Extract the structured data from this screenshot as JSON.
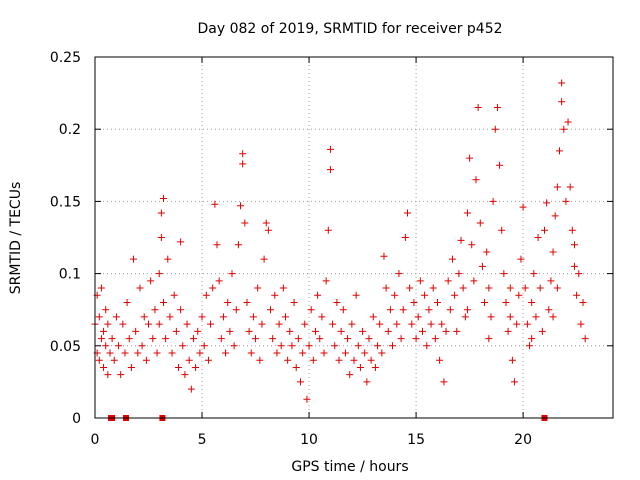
{
  "chart_data": {
    "type": "scatter",
    "title": "Day 082 of 2019, SRMTID for receiver p452",
    "xlabel": "GPS time / hours",
    "ylabel": "SRMTID / TECUs",
    "xlim": [
      0,
      24.2
    ],
    "ylim": [
      0,
      0.25
    ],
    "x_ticks": [
      0,
      5,
      10,
      15,
      20
    ],
    "x_tick_labels": [
      "0",
      "5",
      "10",
      "15",
      "20"
    ],
    "y_ticks": [
      0,
      0.05,
      0.1,
      0.15,
      0.2,
      0.25
    ],
    "y_tick_labels": [
      "0",
      "0.05",
      "0.1",
      "0.15",
      "0.2",
      "0.25"
    ],
    "grid": true,
    "marker": "plus",
    "color": "#e00000",
    "zero_markers_x": [
      0.75,
      0.8,
      1.45,
      3.15,
      21.0
    ],
    "series": [
      {
        "name": "SRMTID",
        "points": [
          [
            0.0,
            0.065
          ],
          [
            0.1,
            0.045
          ],
          [
            0.1,
            0.085
          ],
          [
            0.2,
            0.04
          ],
          [
            0.2,
            0.07
          ],
          [
            0.3,
            0.055
          ],
          [
            0.3,
            0.09
          ],
          [
            0.4,
            0.035
          ],
          [
            0.4,
            0.06
          ],
          [
            0.5,
            0.05
          ],
          [
            0.5,
            0.075
          ],
          [
            0.6,
            0.03
          ],
          [
            0.6,
            0.065
          ],
          [
            0.7,
            0.045
          ],
          [
            0.8,
            0.055
          ],
          [
            0.9,
            0.04
          ],
          [
            1.0,
            0.07
          ],
          [
            1.1,
            0.05
          ],
          [
            1.2,
            0.03
          ],
          [
            1.3,
            0.065
          ],
          [
            1.4,
            0.045
          ],
          [
            1.5,
            0.08
          ],
          [
            1.6,
            0.055
          ],
          [
            1.7,
            0.035
          ],
          [
            1.8,
            0.11
          ],
          [
            1.9,
            0.06
          ],
          [
            2.0,
            0.045
          ],
          [
            2.1,
            0.09
          ],
          [
            2.2,
            0.05
          ],
          [
            2.3,
            0.07
          ],
          [
            2.4,
            0.04
          ],
          [
            2.5,
            0.065
          ],
          [
            2.6,
            0.095
          ],
          [
            2.7,
            0.055
          ],
          [
            2.8,
            0.075
          ],
          [
            2.9,
            0.045
          ],
          [
            3.0,
            0.065
          ],
          [
            3.0,
            0.1
          ],
          [
            3.1,
            0.125
          ],
          [
            3.1,
            0.142
          ],
          [
            3.2,
            0.152
          ],
          [
            3.2,
            0.08
          ],
          [
            3.3,
            0.055
          ],
          [
            3.4,
            0.11
          ],
          [
            3.5,
            0.07
          ],
          [
            3.6,
            0.045
          ],
          [
            3.7,
            0.085
          ],
          [
            3.8,
            0.06
          ],
          [
            3.9,
            0.035
          ],
          [
            4.0,
            0.075
          ],
          [
            4.0,
            0.122
          ],
          [
            4.1,
            0.05
          ],
          [
            4.2,
            0.03
          ],
          [
            4.3,
            0.065
          ],
          [
            4.4,
            0.04
          ],
          [
            4.5,
            0.02
          ],
          [
            4.6,
            0.055
          ],
          [
            4.7,
            0.035
          ],
          [
            4.8,
            0.06
          ],
          [
            4.9,
            0.045
          ],
          [
            5.0,
            0.07
          ],
          [
            5.1,
            0.05
          ],
          [
            5.2,
            0.085
          ],
          [
            5.3,
            0.04
          ],
          [
            5.4,
            0.065
          ],
          [
            5.5,
            0.09
          ],
          [
            5.6,
            0.148
          ],
          [
            5.7,
            0.12
          ],
          [
            5.8,
            0.095
          ],
          [
            5.9,
            0.055
          ],
          [
            6.0,
            0.07
          ],
          [
            6.1,
            0.045
          ],
          [
            6.2,
            0.08
          ],
          [
            6.3,
            0.06
          ],
          [
            6.4,
            0.1
          ],
          [
            6.5,
            0.05
          ],
          [
            6.6,
            0.075
          ],
          [
            6.7,
            0.12
          ],
          [
            6.8,
            0.147
          ],
          [
            6.9,
            0.176
          ],
          [
            6.9,
            0.183
          ],
          [
            7.0,
            0.135
          ],
          [
            7.1,
            0.08
          ],
          [
            7.2,
            0.06
          ],
          [
            7.3,
            0.045
          ],
          [
            7.4,
            0.07
          ],
          [
            7.5,
            0.055
          ],
          [
            7.6,
            0.09
          ],
          [
            7.7,
            0.04
          ],
          [
            7.8,
            0.065
          ],
          [
            7.9,
            0.11
          ],
          [
            8.0,
            0.135
          ],
          [
            8.1,
            0.13
          ],
          [
            8.2,
            0.075
          ],
          [
            8.3,
            0.055
          ],
          [
            8.4,
            0.085
          ],
          [
            8.5,
            0.045
          ],
          [
            8.6,
            0.065
          ],
          [
            8.7,
            0.05
          ],
          [
            8.8,
            0.09
          ],
          [
            8.9,
            0.07
          ],
          [
            9.0,
            0.04
          ],
          [
            9.1,
            0.06
          ],
          [
            9.2,
            0.05
          ],
          [
            9.3,
            0.08
          ],
          [
            9.4,
            0.035
          ],
          [
            9.5,
            0.055
          ],
          [
            9.6,
            0.025
          ],
          [
            9.7,
            0.045
          ],
          [
            9.8,
            0.065
          ],
          [
            9.9,
            0.013
          ],
          [
            10.0,
            0.05
          ],
          [
            10.1,
            0.075
          ],
          [
            10.2,
            0.04
          ],
          [
            10.3,
            0.06
          ],
          [
            10.4,
            0.085
          ],
          [
            10.5,
            0.055
          ],
          [
            10.6,
            0.07
          ],
          [
            10.7,
            0.045
          ],
          [
            10.8,
            0.095
          ],
          [
            10.9,
            0.13
          ],
          [
            11.0,
            0.172
          ],
          [
            11.0,
            0.186
          ],
          [
            11.1,
            0.065
          ],
          [
            11.2,
            0.05
          ],
          [
            11.3,
            0.08
          ],
          [
            11.4,
            0.04
          ],
          [
            11.5,
            0.06
          ],
          [
            11.6,
            0.075
          ],
          [
            11.7,
            0.045
          ],
          [
            11.8,
            0.055
          ],
          [
            11.9,
            0.03
          ],
          [
            12.0,
            0.065
          ],
          [
            12.1,
            0.04
          ],
          [
            12.2,
            0.085
          ],
          [
            12.3,
            0.05
          ],
          [
            12.4,
            0.035
          ],
          [
            12.5,
            0.06
          ],
          [
            12.6,
            0.045
          ],
          [
            12.7,
            0.025
          ],
          [
            12.8,
            0.055
          ],
          [
            12.9,
            0.04
          ],
          [
            13.0,
            0.07
          ],
          [
            13.1,
            0.035
          ],
          [
            13.2,
            0.05
          ],
          [
            13.3,
            0.065
          ],
          [
            13.4,
            0.045
          ],
          [
            13.5,
            0.112
          ],
          [
            13.6,
            0.09
          ],
          [
            13.7,
            0.06
          ],
          [
            13.8,
            0.075
          ],
          [
            13.9,
            0.05
          ],
          [
            14.0,
            0.085
          ],
          [
            14.1,
            0.065
          ],
          [
            14.2,
            0.1
          ],
          [
            14.3,
            0.055
          ],
          [
            14.4,
            0.075
          ],
          [
            14.5,
            0.125
          ],
          [
            14.6,
            0.142
          ],
          [
            14.7,
            0.09
          ],
          [
            14.8,
            0.065
          ],
          [
            14.9,
            0.08
          ],
          [
            15.0,
            0.055
          ],
          [
            15.1,
            0.07
          ],
          [
            15.2,
            0.095
          ],
          [
            15.3,
            0.06
          ],
          [
            15.4,
            0.085
          ],
          [
            15.5,
            0.05
          ],
          [
            15.6,
            0.075
          ],
          [
            15.7,
            0.065
          ],
          [
            15.8,
            0.09
          ],
          [
            15.9,
            0.055
          ],
          [
            16.0,
            0.08
          ],
          [
            16.1,
            0.04
          ],
          [
            16.2,
            0.065
          ],
          [
            16.3,
            0.025
          ],
          [
            16.4,
            0.06
          ],
          [
            16.5,
            0.095
          ],
          [
            16.6,
            0.075
          ],
          [
            16.7,
            0.11
          ],
          [
            16.8,
            0.085
          ],
          [
            16.9,
            0.06
          ],
          [
            17.0,
            0.1
          ],
          [
            17.1,
            0.123
          ],
          [
            17.2,
            0.09
          ],
          [
            17.3,
            0.07
          ],
          [
            17.4,
            0.142
          ],
          [
            17.5,
            0.18
          ],
          [
            17.6,
            0.12
          ],
          [
            17.7,
            0.095
          ],
          [
            17.8,
            0.165
          ],
          [
            17.9,
            0.215
          ],
          [
            18.0,
            0.135
          ],
          [
            18.1,
            0.105
          ],
          [
            18.2,
            0.08
          ],
          [
            18.3,
            0.115
          ],
          [
            18.4,
            0.09
          ],
          [
            18.5,
            0.07
          ],
          [
            18.6,
            0.15
          ],
          [
            18.7,
            0.2
          ],
          [
            18.8,
            0.215
          ],
          [
            18.9,
            0.175
          ],
          [
            19.0,
            0.13
          ],
          [
            19.1,
            0.1
          ],
          [
            19.2,
            0.08
          ],
          [
            19.3,
            0.06
          ],
          [
            19.4,
            0.09
          ],
          [
            19.5,
            0.04
          ],
          [
            19.6,
            0.025
          ],
          [
            19.7,
            0.065
          ],
          [
            19.8,
            0.085
          ],
          [
            19.9,
            0.11
          ],
          [
            20.0,
            0.146
          ],
          [
            20.1,
            0.09
          ],
          [
            20.2,
            0.065
          ],
          [
            20.3,
            0.05
          ],
          [
            20.4,
            0.08
          ],
          [
            20.5,
            0.1
          ],
          [
            20.6,
            0.07
          ],
          [
            20.7,
            0.125
          ],
          [
            20.8,
            0.09
          ],
          [
            20.9,
            0.06
          ],
          [
            21.0,
            0.13
          ],
          [
            21.1,
            0.149
          ],
          [
            21.2,
            0.075
          ],
          [
            21.3,
            0.095
          ],
          [
            21.4,
            0.115
          ],
          [
            21.5,
            0.14
          ],
          [
            21.6,
            0.16
          ],
          [
            21.7,
            0.185
          ],
          [
            21.8,
            0.219
          ],
          [
            21.8,
            0.232
          ],
          [
            21.9,
            0.2
          ],
          [
            22.0,
            0.15
          ],
          [
            22.1,
            0.205
          ],
          [
            22.2,
            0.16
          ],
          [
            22.3,
            0.13
          ],
          [
            22.4,
            0.105
          ],
          [
            22.5,
            0.085
          ],
          [
            22.6,
            0.1
          ],
          [
            22.7,
            0.065
          ],
          [
            22.8,
            0.08
          ],
          [
            22.9,
            0.055
          ],
          [
            22.4,
            0.12
          ],
          [
            21.6,
            0.09
          ],
          [
            21.4,
            0.07
          ],
          [
            20.4,
            0.055
          ],
          [
            19.4,
            0.07
          ],
          [
            18.4,
            0.055
          ],
          [
            17.4,
            0.075
          ]
        ]
      }
    ]
  }
}
